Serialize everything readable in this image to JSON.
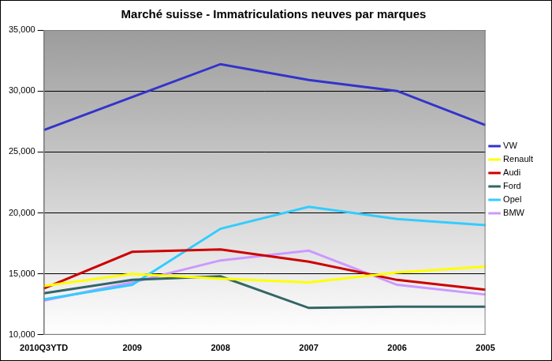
{
  "chart_data": {
    "type": "line",
    "title": "Marché suisse - Immatriculations neuves par marques",
    "categories": [
      "2010Q3YTD",
      "2009",
      "2008",
      "2007",
      "2006",
      "2005"
    ],
    "series": [
      {
        "name": "VW",
        "color": "#3333cc",
        "values": [
          26800,
          29500,
          32200,
          30900,
          30000,
          27200
        ]
      },
      {
        "name": "Renault",
        "color": "#ffff00",
        "values": [
          14000,
          15000,
          14600,
          14300,
          15100,
          15600
        ]
      },
      {
        "name": "Audi",
        "color": "#cc0000",
        "values": [
          13800,
          16800,
          17000,
          16000,
          14500,
          13700
        ]
      },
      {
        "name": "Ford",
        "color": "#336666",
        "values": [
          13400,
          14500,
          14800,
          12200,
          12300,
          12300
        ]
      },
      {
        "name": "Opel",
        "color": "#33ccff",
        "values": [
          12900,
          14100,
          18700,
          20500,
          19500,
          19000
        ]
      },
      {
        "name": "BMW",
        "color": "#cc99ff",
        "values": [
          12800,
          14300,
          16100,
          16900,
          14100,
          13300
        ]
      }
    ],
    "ylim": [
      10000,
      35000
    ],
    "yticks": [
      {
        "value": 10000,
        "label": "10,000"
      },
      {
        "value": 15000,
        "label": "15,000"
      },
      {
        "value": 20000,
        "label": "20,000"
      },
      {
        "value": 25000,
        "label": "25,000"
      },
      {
        "value": 30000,
        "label": "30,000"
      },
      {
        "value": 35000,
        "label": "35,000"
      }
    ],
    "grid": true,
    "legend": "right"
  }
}
